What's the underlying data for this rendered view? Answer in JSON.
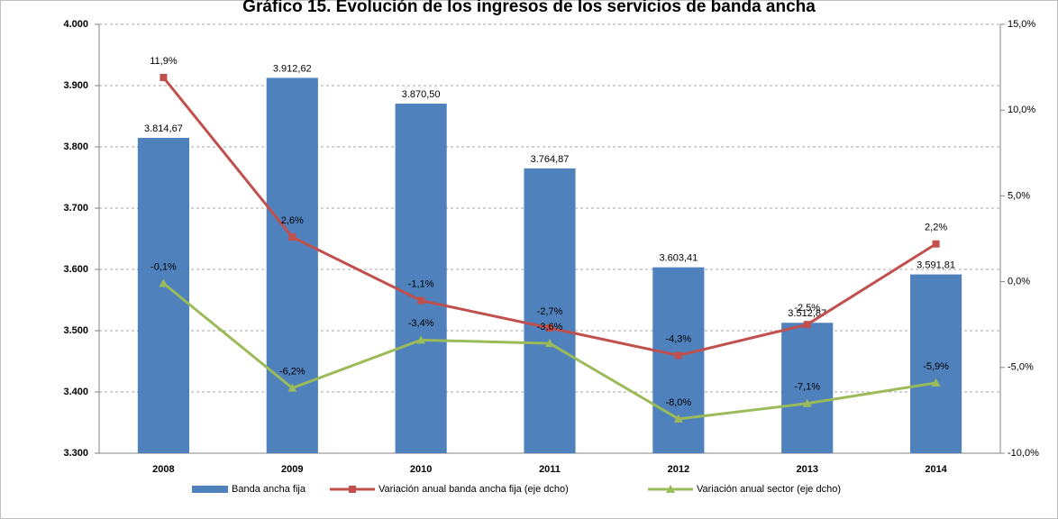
{
  "chart_data": {
    "type": "bar",
    "title": "Gráfico 15. Evolución de los ingresos de los servicios de banda ancha",
    "categories": [
      "2008",
      "2009",
      "2010",
      "2011",
      "2012",
      "2013",
      "2014"
    ],
    "ylim": [
      3300,
      4000
    ],
    "yticks": [
      {
        "value": 3300,
        "label": "3.300"
      },
      {
        "value": 3400,
        "label": "3.400"
      },
      {
        "value": 3500,
        "label": "3.500"
      },
      {
        "value": 3600,
        "label": "3.600"
      },
      {
        "value": 3700,
        "label": "3.700"
      },
      {
        "value": 3800,
        "label": "3.800"
      },
      {
        "value": 3900,
        "label": "3.900"
      },
      {
        "value": 4000,
        "label": "4.000"
      }
    ],
    "y2lim": [
      -10,
      15
    ],
    "y2ticks": [
      {
        "value": -10,
        "label": "-10,0%"
      },
      {
        "value": -5,
        "label": "-5,0%"
      },
      {
        "value": 0,
        "label": "0,0%"
      },
      {
        "value": 5,
        "label": "5,0%"
      },
      {
        "value": 10,
        "label": "10,0%"
      },
      {
        "value": 15,
        "label": "15,0%"
      }
    ],
    "grid": true,
    "legend": "bottom",
    "series": [
      {
        "name": "Banda ancha fija",
        "type": "bar",
        "color": "#4f81bd",
        "values": [
          3814.67,
          3912.62,
          3870.5,
          3764.87,
          3603.41,
          3512.87,
          3591.81
        ],
        "value_labels": [
          "3.814,67",
          "3.912,62",
          "3.870,50",
          "3.764,87",
          "3.603,41",
          "3.512,87",
          "3.591,81"
        ]
      },
      {
        "name": "Variación anual banda ancha fija (eje dcho)",
        "type": "line",
        "axis": "y2",
        "marker": "square",
        "color": "#c0504d",
        "values": [
          11.9,
          2.6,
          -1.1,
          -2.7,
          -4.3,
          -2.5,
          2.2
        ],
        "value_labels": [
          "11,9%",
          "2,6%",
          "-1,1%",
          "-2,7%",
          "-4,3%",
          "-2,5%",
          "2,2%"
        ]
      },
      {
        "name": "Variación anual sector (eje dcho)",
        "type": "line",
        "axis": "y2",
        "marker": "triangle",
        "color": "#9bbb59",
        "values": [
          -0.1,
          -6.2,
          -3.4,
          -3.6,
          -8.0,
          -7.1,
          -5.9
        ],
        "value_labels": [
          "-0,1%",
          "-6,2%",
          "-3,4%",
          "-3,6%",
          "-8,0%",
          "-7,1%",
          "-5,9%"
        ]
      }
    ]
  }
}
